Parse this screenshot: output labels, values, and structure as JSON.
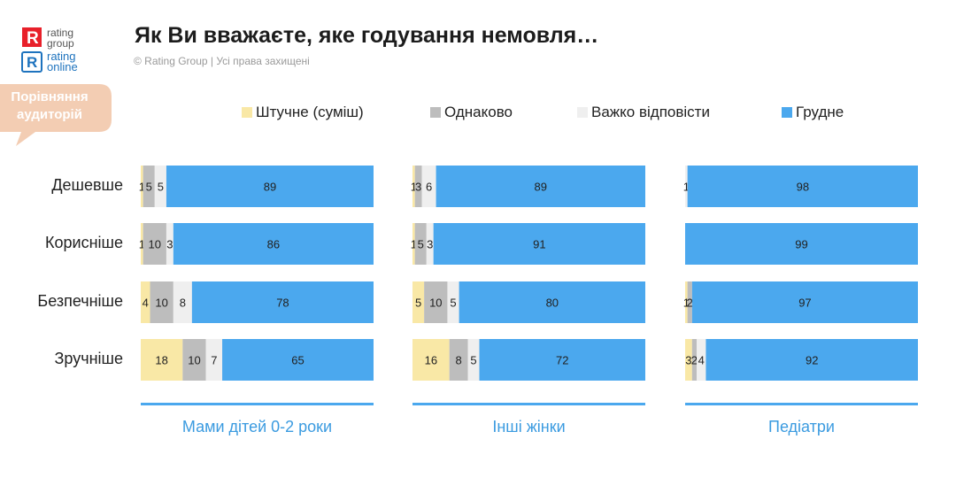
{
  "logo": {
    "brand1_line1": "rating",
    "brand1_line2": "group",
    "brand2_line1": "rating",
    "brand2_line2": "online"
  },
  "header": {
    "title": "Як Ви вважаєте, яке годування немовля…",
    "subtitle": "© Rating Group | Усі права захищені"
  },
  "badge": {
    "line1": "Порівняння",
    "line2": "аудиторій",
    "color": "#F3CDB3"
  },
  "chart_data": {
    "type": "bar",
    "orientation": "horizontal",
    "stacked": true,
    "percent_scale": [
      0,
      100
    ],
    "categories": [
      "Дешевше",
      "Корисніше",
      "Безпечніше",
      "Зручніше"
    ],
    "series": [
      {
        "name": "Штучне (суміш)",
        "color": "#F9E8A6"
      },
      {
        "name": "Однаково",
        "color": "#BDBDBD"
      },
      {
        "name": "Важко відповісти",
        "color": "#EFEFEF"
      },
      {
        "name": "Грудне",
        "color": "#4BA8EE"
      }
    ],
    "legend_position": "top",
    "panels": [
      {
        "name": "Мами дітей 0-2 роки",
        "values": [
          [
            1,
            5,
            5,
            89
          ],
          [
            1,
            10,
            3,
            86
          ],
          [
            4,
            10,
            8,
            78
          ],
          [
            18,
            10,
            7,
            65
          ]
        ],
        "labels": [
          [
            "1",
            "5",
            "5",
            "89"
          ],
          [
            "1",
            "10",
            "3",
            "86"
          ],
          [
            "4",
            "10",
            "8",
            "78"
          ],
          [
            "18",
            "10",
            "7",
            "65"
          ]
        ]
      },
      {
        "name": "Інші жінки",
        "values": [
          [
            1,
            3,
            6,
            89
          ],
          [
            1,
            5,
            3,
            91
          ],
          [
            5,
            10,
            5,
            80
          ],
          [
            16,
            8,
            5,
            72
          ]
        ],
        "labels": [
          [
            "1",
            "3",
            "6",
            "89"
          ],
          [
            "1",
            "5",
            "3",
            "91"
          ],
          [
            "5",
            "10",
            "5",
            "80"
          ],
          [
            "16",
            "8",
            "5",
            "72"
          ]
        ]
      },
      {
        "name": "Педіатри",
        "values": [
          [
            0,
            0,
            1,
            98
          ],
          [
            0,
            0,
            0,
            99
          ],
          [
            1,
            2,
            0,
            97
          ],
          [
            3,
            2,
            4,
            92
          ]
        ],
        "labels": [
          [
            "",
            "",
            "1",
            "98"
          ],
          [
            "",
            "",
            "",
            "99"
          ],
          [
            "1",
            "2",
            "",
            "97"
          ],
          [
            "3",
            "2",
            "4",
            "92"
          ]
        ]
      }
    ]
  }
}
